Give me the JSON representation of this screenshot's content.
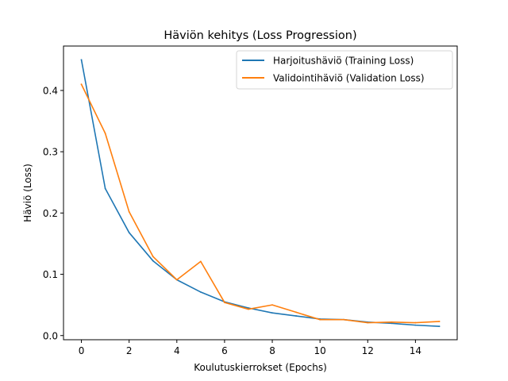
{
  "chart_data": {
    "type": "line",
    "title": "Häviön kehitys (Loss Progression)",
    "xlabel": "Koulutuskierrokset (Epochs)",
    "ylabel": "Häviö (Loss)",
    "xlim": [
      -0.75,
      15.75
    ],
    "ylim": [
      -0.0068,
      0.4725
    ],
    "xticks": [
      0,
      2,
      4,
      6,
      8,
      10,
      12,
      14
    ],
    "yticks": [
      0.0,
      0.1,
      0.2,
      0.3,
      0.4
    ],
    "xtick_labels": [
      "0",
      "2",
      "4",
      "6",
      "8",
      "10",
      "12",
      "14"
    ],
    "ytick_labels": [
      "0.0",
      "0.1",
      "0.2",
      "0.3",
      "0.4"
    ],
    "grid": false,
    "legend_position": "top-right",
    "x": [
      0,
      1,
      2,
      3,
      4,
      5,
      6,
      7,
      8,
      9,
      10,
      11,
      12,
      13,
      14,
      15
    ],
    "series": [
      {
        "name": "Harjoitushäviö (Training Loss)",
        "color": "#1f77b4",
        "values": [
          0.45,
          0.24,
          0.168,
          0.122,
          0.091,
          0.071,
          0.055,
          0.045,
          0.037,
          0.032,
          0.027,
          0.026,
          0.022,
          0.02,
          0.017,
          0.015
        ]
      },
      {
        "name": "Validointihäviö (Validation Loss)",
        "color": "#ff7f0e",
        "values": [
          0.41,
          0.33,
          0.202,
          0.129,
          0.091,
          0.121,
          0.054,
          0.043,
          0.05,
          0.038,
          0.026,
          0.026,
          0.021,
          0.022,
          0.021,
          0.023
        ]
      }
    ]
  }
}
